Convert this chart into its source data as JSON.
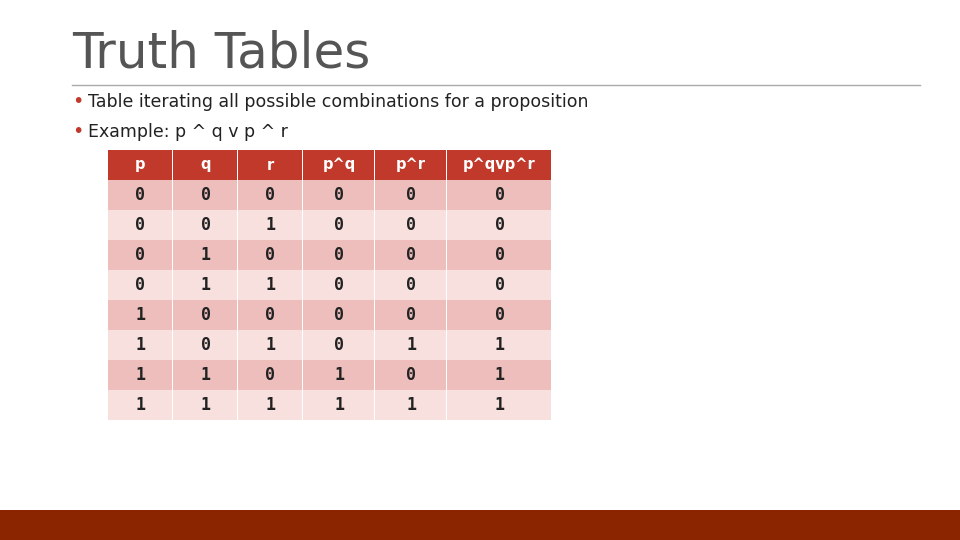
{
  "title": "Truth Tables",
  "bullet1": "Table iterating all possible combinations for a proposition",
  "bullet2_raw": "Example: p ^ q v p ^ r",
  "col_headers_display": [
    "p",
    "q",
    "r",
    "p^q",
    "p^r",
    "p^qvp^r"
  ],
  "table_data": [
    [
      0,
      0,
      0,
      0,
      0,
      0
    ],
    [
      0,
      0,
      1,
      0,
      0,
      0
    ],
    [
      0,
      1,
      0,
      0,
      0,
      0
    ],
    [
      0,
      1,
      1,
      0,
      0,
      0
    ],
    [
      1,
      0,
      0,
      0,
      0,
      0
    ],
    [
      1,
      0,
      1,
      0,
      1,
      1
    ],
    [
      1,
      1,
      0,
      1,
      0,
      1
    ],
    [
      1,
      1,
      1,
      1,
      1,
      1
    ]
  ],
  "header_bg": "#C0392B",
  "header_text": "#FFFFFF",
  "row_dark_bg": "#EDBEBC",
  "row_light_bg": "#F7E0DE",
  "title_color": "#555555",
  "bullet_color": "#C0392B",
  "text_color": "#222222",
  "line_color": "#AAAAAA",
  "bottom_bar_color": "#8B2500",
  "background_color": "#FFFFFF"
}
